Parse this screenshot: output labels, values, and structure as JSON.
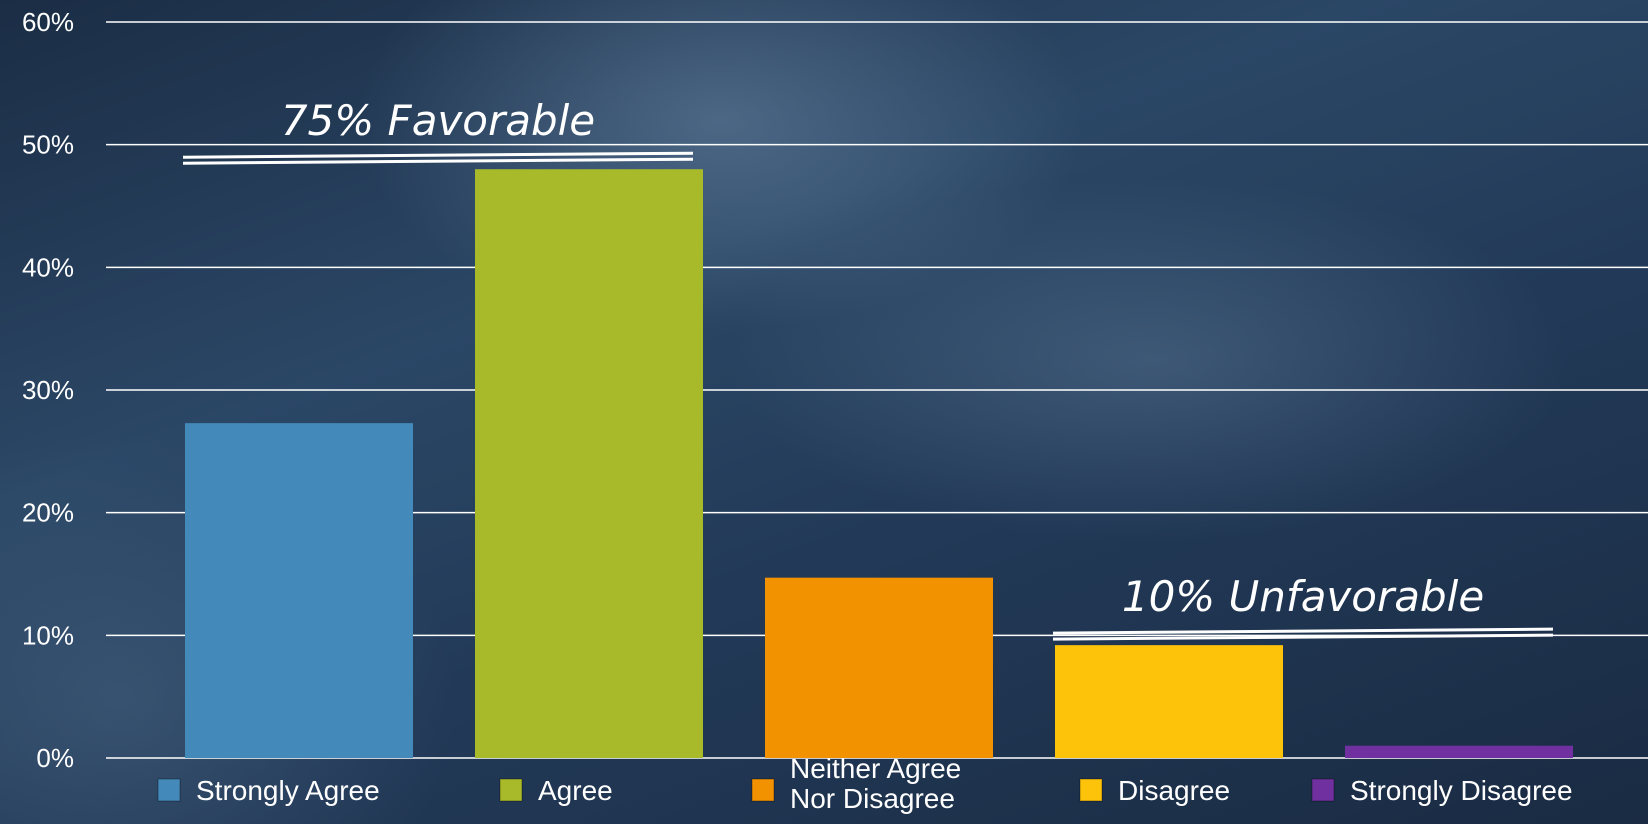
{
  "chart_data": {
    "type": "bar",
    "categories": [
      "Strongly Agree",
      "Agree",
      "Neither Agree Nor Disagree",
      "Disagree",
      "Strongly Disagree"
    ],
    "values": [
      27.3,
      48.0,
      14.7,
      9.2,
      1.0
    ],
    "colors": [
      "#4389b9",
      "#a8b92a",
      "#f39200",
      "#fdc20a",
      "#7030a0"
    ],
    "legend": [
      {
        "label_lines": [
          "Strongly Agree"
        ],
        "color": "#4389b9"
      },
      {
        "label_lines": [
          "Agree"
        ],
        "color": "#a8b92a"
      },
      {
        "label_lines": [
          "Neither Agree",
          "Nor Disagree"
        ],
        "color": "#f39200"
      },
      {
        "label_lines": [
          "Disagree"
        ],
        "color": "#fdc20a"
      },
      {
        "label_lines": [
          "Strongly Disagree"
        ],
        "color": "#7030a0"
      }
    ],
    "yticks": [
      "0%",
      "10%",
      "20%",
      "30%",
      "40%",
      "50%",
      "60%"
    ],
    "ylim": [
      0,
      60
    ],
    "grid": true,
    "legend_position": "bottom",
    "annotations": [
      {
        "text": "75% Favorable",
        "categories": [
          0,
          1
        ]
      },
      {
        "text": "10% Unfavorable",
        "categories": [
          3,
          4
        ]
      }
    ]
  }
}
